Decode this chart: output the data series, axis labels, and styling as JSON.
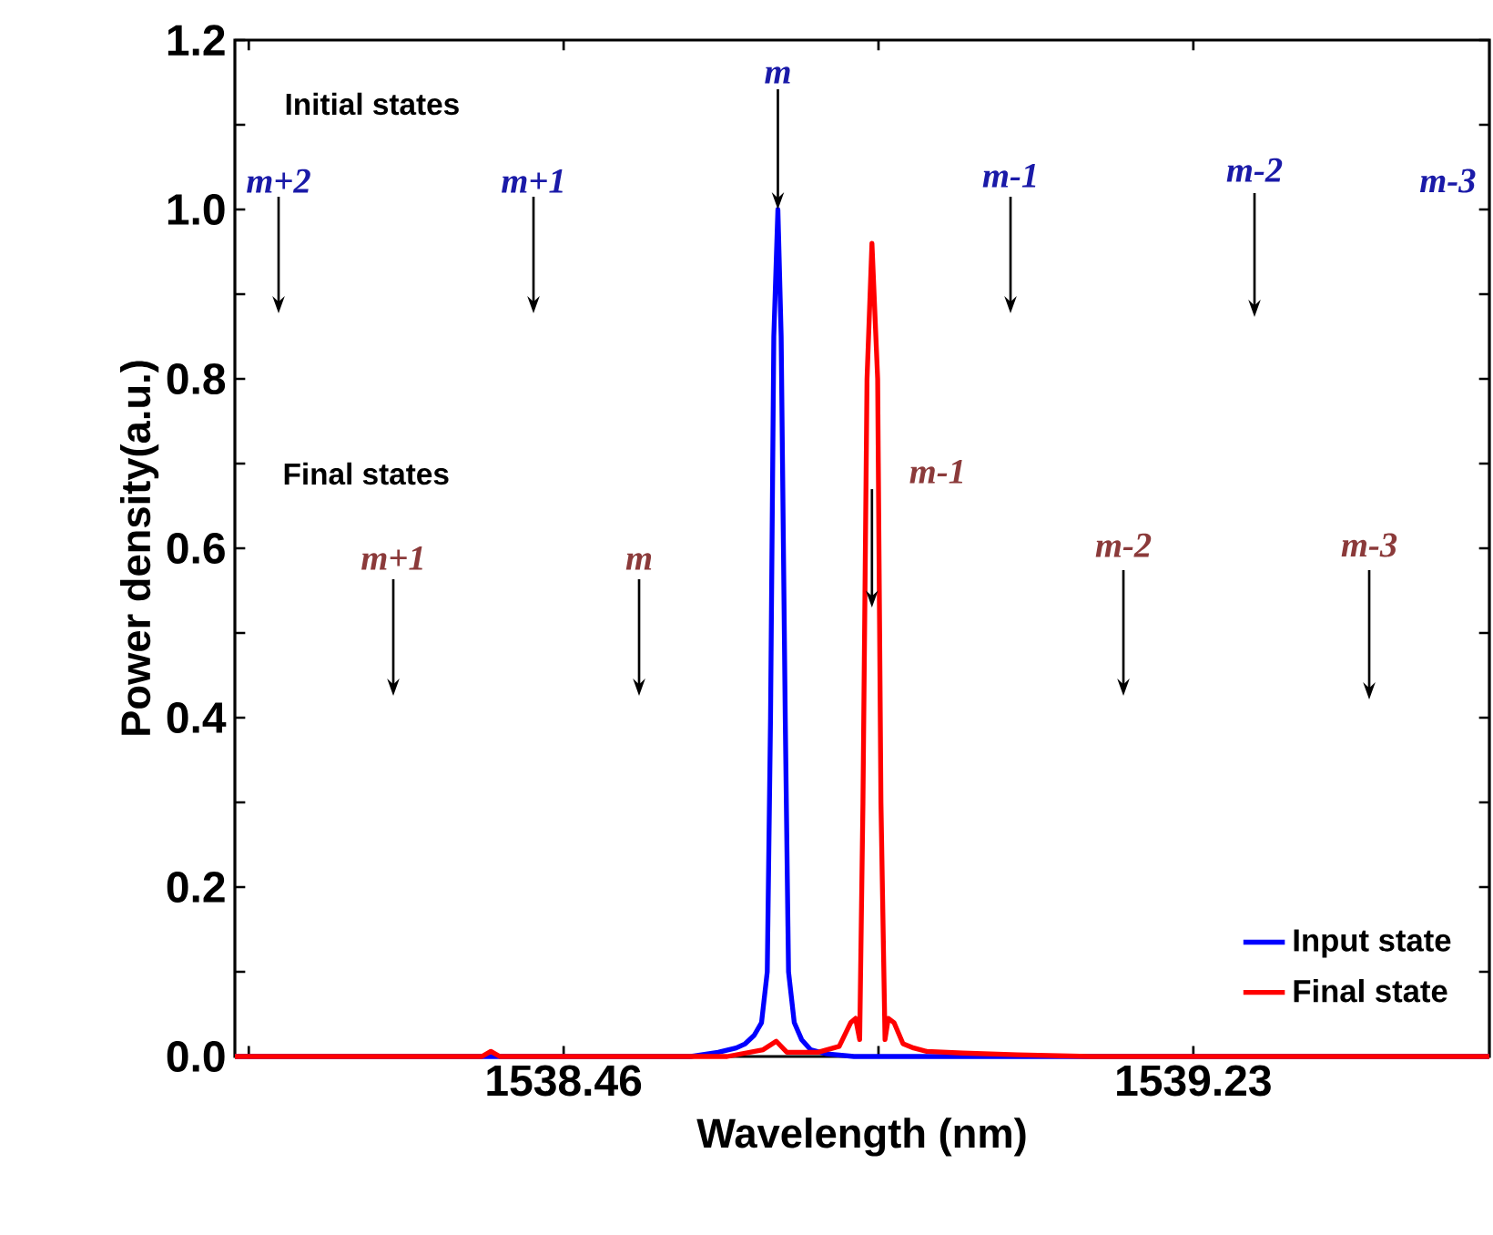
{
  "chart_data": {
    "type": "line",
    "xlabel": "Wavelength (nm)",
    "ylabel": "Power density(a.u.)",
    "xlim": [
      1538.058,
      1539.592
    ],
    "ylim": [
      0,
      1.2
    ],
    "xticks": [
      {
        "value": 1538.075,
        "label": null
      },
      1538.46,
      {
        "value": 1538.845,
        "label": null
      },
      1539.23
    ],
    "yticks": [
      "0.0",
      {
        "value": 0.1,
        "label": null
      },
      0.2,
      {
        "value": 0.3,
        "label": null
      },
      0.4,
      {
        "value": 0.5,
        "label": null
      },
      0.6,
      {
        "value": 0.7,
        "label": null
      },
      0.8,
      {
        "value": 0.9,
        "label": null
      },
      "1.0",
      {
        "value": 1.1,
        "label": null
      },
      1.2
    ],
    "legend": "bottom right",
    "grid": false,
    "marker": "none",
    "line_style": "solid",
    "series": [
      {
        "name": "Input state",
        "color": "#0000ff",
        "x": [
          1538.058,
          1538.615,
          1538.649,
          1538.671,
          1538.682,
          1538.693,
          1538.702,
          1538.709,
          1538.713,
          1538.717,
          1538.722,
          1538.726,
          1538.731,
          1538.735,
          1538.742,
          1538.751,
          1538.762,
          1538.782,
          1538.815,
          1539.592
        ],
        "values": [
          0,
          0,
          0.005,
          0.01,
          0.015,
          0.025,
          0.04,
          0.1,
          0.4,
          0.85,
          1.0,
          0.85,
          0.4,
          0.1,
          0.04,
          0.02,
          0.008,
          0.003,
          0,
          0
        ]
      },
      {
        "name": "Final state",
        "color": "#ff0000",
        "x": [
          1538.058,
          1538.36,
          1538.371,
          1538.382,
          1538.66,
          1538.704,
          1538.72,
          1538.733,
          1538.771,
          1538.797,
          1538.811,
          1538.817,
          1538.822,
          1538.826,
          1538.831,
          1538.837,
          1538.844,
          1538.848,
          1538.853,
          1538.857,
          1538.864,
          1538.875,
          1538.888,
          1538.904,
          1538.948,
          1539.015,
          1539.104,
          1539.592
        ],
        "values": [
          0,
          0,
          0.006,
          0,
          0,
          0.008,
          0.018,
          0.005,
          0.005,
          0.012,
          0.04,
          0.045,
          0.02,
          0.3,
          0.8,
          0.96,
          0.8,
          0.3,
          0.02,
          0.045,
          0.04,
          0.015,
          0.01,
          0.006,
          0.004,
          0.002,
          0,
          0
        ]
      }
    ],
    "annotations": [
      "Initial states",
      "m+2",
      "m+1",
      {
        "text": "m",
        "x": 1538.722,
        "y": 1.0
      },
      "m-1",
      "m-2",
      "m-3",
      "Final states",
      "m+1",
      "m",
      {
        "text": "m-1",
        "x": 1538.837,
        "y": 0.53
      },
      "m-2",
      "m-3"
    ]
  }
}
